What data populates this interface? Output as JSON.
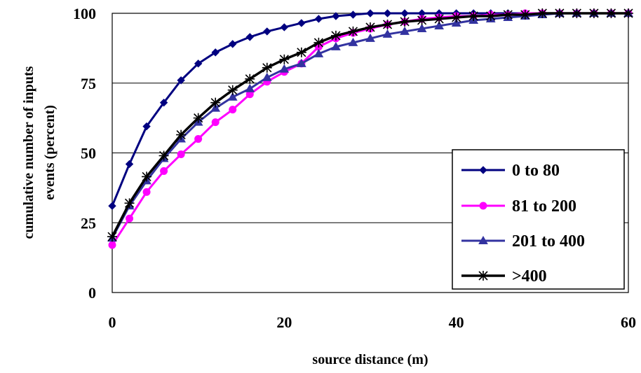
{
  "chart_data": {
    "type": "line",
    "xlabel": "source distance (m)",
    "ylabel_line1": "cumulative number of inputs",
    "ylabel_line2": "events (percent)",
    "xlim": [
      0,
      60
    ],
    "ylim": [
      0,
      100
    ],
    "x_ticks": [
      "0",
      "20",
      "40",
      "60"
    ],
    "y_ticks": [
      "0",
      "25",
      "50",
      "75",
      "100"
    ],
    "grid": "horizontal",
    "legend_position": "bottom-right",
    "x": [
      0,
      2,
      4,
      6,
      8,
      10,
      12,
      14,
      16,
      18,
      20,
      22,
      24,
      26,
      28,
      30,
      32,
      34,
      36,
      38,
      40,
      42,
      44,
      46,
      48,
      50,
      52,
      54,
      56,
      58,
      60
    ],
    "series": [
      {
        "name": "0 to 80",
        "color": "#000080",
        "marker": "diamond",
        "values": [
          31,
          46,
          59.5,
          68,
          76,
          82,
          86,
          89,
          91.5,
          93.5,
          95,
          96.5,
          98,
          99,
          99.5,
          100,
          100,
          100,
          100,
          100,
          100,
          100,
          100,
          100,
          100,
          100,
          100,
          100,
          100,
          100,
          100
        ]
      },
      {
        "name": "81 to 200",
        "color": "#ff00ff",
        "marker": "circle",
        "values": [
          17,
          26.5,
          36,
          43.5,
          49.5,
          55,
          61,
          65.5,
          71,
          75.5,
          79,
          82,
          88,
          91,
          93,
          94.5,
          96,
          97,
          98,
          98.5,
          99,
          99,
          99.5,
          99.5,
          100,
          100,
          100,
          100,
          100,
          100,
          100
        ]
      },
      {
        "name": "201 to 400",
        "color": "#3333a0",
        "marker": "triangle",
        "values": [
          19.5,
          31,
          40,
          48,
          55,
          61,
          66,
          70,
          73,
          77,
          80,
          82,
          85.5,
          88,
          89.5,
          91,
          92.5,
          93.5,
          94.5,
          95.5,
          96.5,
          97.5,
          98,
          98.5,
          99,
          99.5,
          100,
          100,
          100,
          100,
          100
        ]
      },
      {
        "name": ">400",
        "color": "#000000",
        "marker": "star",
        "values": [
          20,
          32,
          41.5,
          49,
          56.5,
          62.5,
          68,
          72.5,
          76.5,
          80.5,
          83.5,
          86,
          89.5,
          92,
          93.5,
          95,
          96,
          97,
          97.5,
          98,
          98.5,
          99,
          99,
          99.5,
          99.5,
          100,
          100,
          100,
          100,
          100,
          100
        ]
      }
    ]
  }
}
